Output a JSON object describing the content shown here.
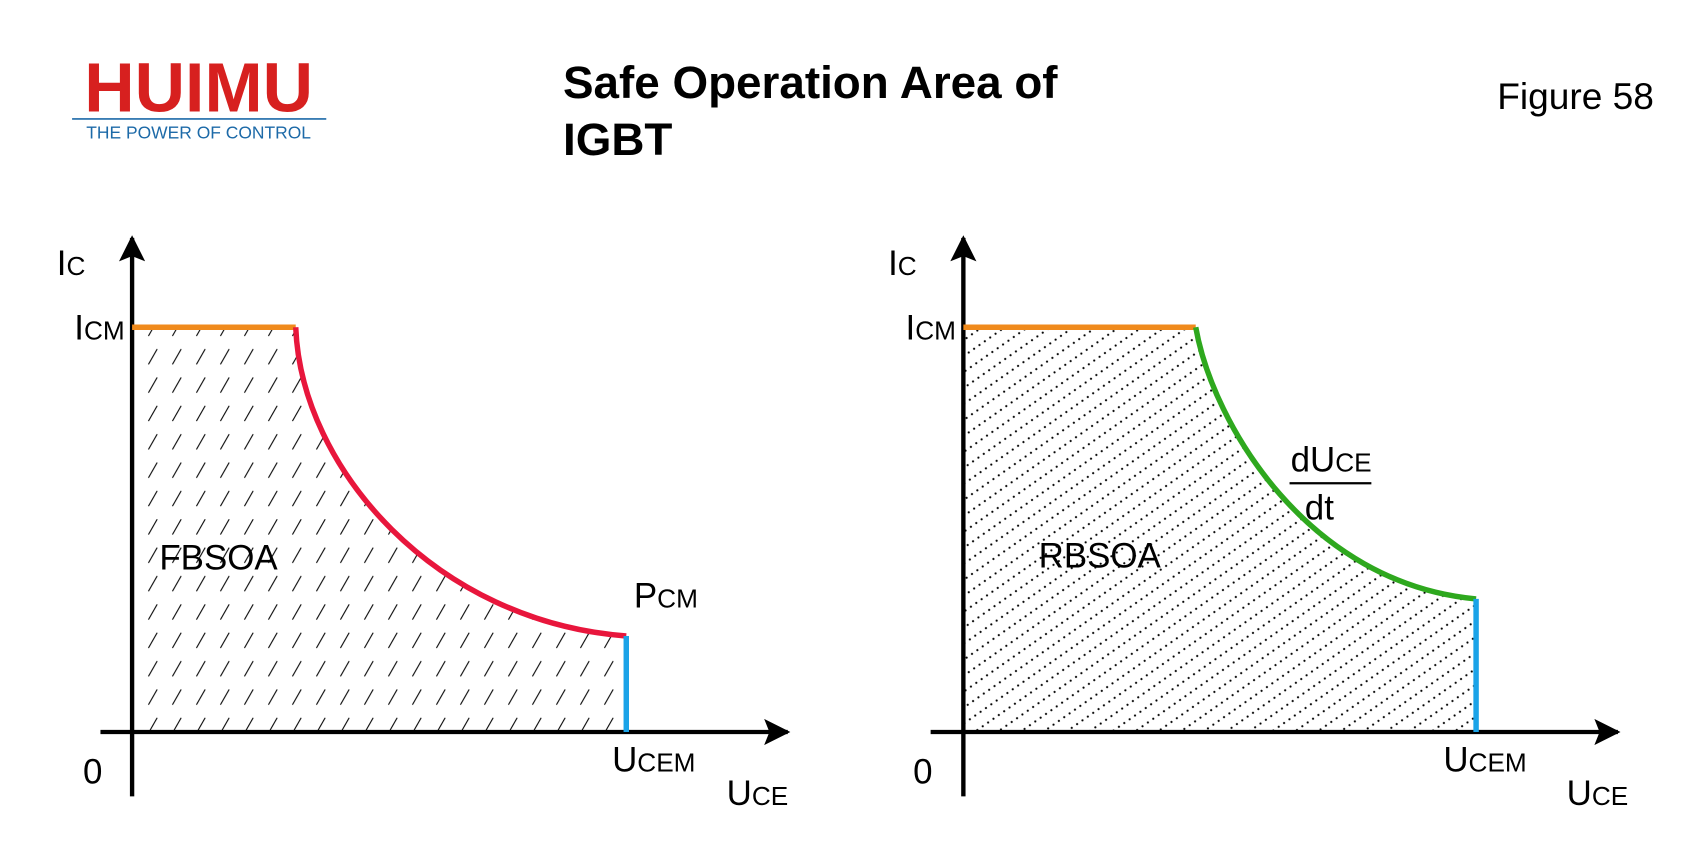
{
  "header": {
    "logo": "HUIMU",
    "tagline": "THE POWER OF CONTROL",
    "title_line1": "Safe Operation Area of",
    "title_line2": "IGBT",
    "figure": "Figure 58"
  },
  "diagrams": [
    {
      "y_axis": {
        "main": "I",
        "sub": "C"
      },
      "y_level": {
        "main": "I",
        "sub": "CM"
      },
      "origin": "0",
      "x_axis": {
        "main": "U",
        "sub": "CE"
      },
      "x_level": {
        "main": "U",
        "sub": "CEM"
      },
      "curve_label": {
        "main": "P",
        "sub": "CM"
      },
      "region": "FBSOA"
    },
    {
      "y_axis": {
        "main": "I",
        "sub": "C"
      },
      "y_level": {
        "main": "I",
        "sub": "CM"
      },
      "origin": "0",
      "x_axis": {
        "main": "U",
        "sub": "CE"
      },
      "x_level": {
        "main": "U",
        "sub": "CEM"
      },
      "curve_label": {
        "numerator": "dU",
        "numerator_sub": "CE",
        "denominator": "dt"
      },
      "region": "RBSOA"
    }
  ]
}
